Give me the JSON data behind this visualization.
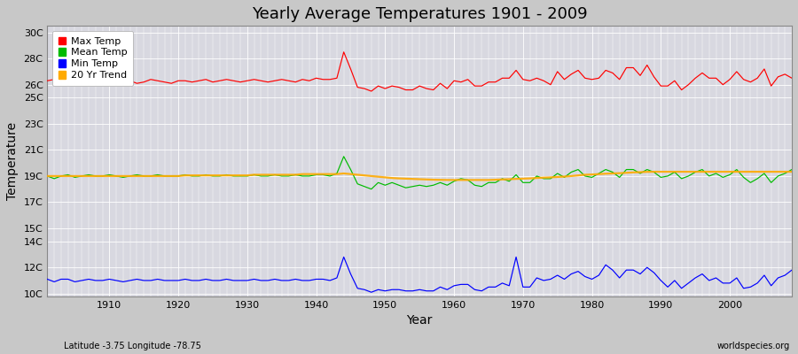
{
  "title": "Yearly Average Temperatures 1901 - 2009",
  "xlabel": "Year",
  "ylabel": "Temperature",
  "subtitle": "Latitude -3.75 Longitude -78.75",
  "watermark": "worldspecies.org",
  "years_start": 1901,
  "years_end": 2009,
  "ytick_positions": [
    10,
    12,
    14,
    15,
    17,
    19,
    21,
    23,
    25,
    26,
    28,
    30
  ],
  "ytick_labels": [
    "10C",
    "12C",
    "14C",
    "15C",
    "17C",
    "19C",
    "21C",
    "23C",
    "25C",
    "26C",
    "28C",
    "30C"
  ],
  "ylim": [
    9.8,
    30.5
  ],
  "xlim": [
    1901,
    2009
  ],
  "fig_bg_color": "#c8c8c8",
  "plot_bg_color": "#d8d8e0",
  "grid_color": "#ffffff",
  "max_temp_color": "#ff0000",
  "mean_temp_color": "#00bb00",
  "min_temp_color": "#0000ff",
  "trend_color": "#ffaa00",
  "legend_labels": [
    "Max Temp",
    "Mean Temp",
    "Min Temp",
    "20 Yr Trend"
  ],
  "xtick_vals": [
    1910,
    1920,
    1930,
    1940,
    1950,
    1960,
    1970,
    1980,
    1990,
    2000
  ],
  "max_temp": [
    26.3,
    26.4,
    26.3,
    26.2,
    26.4,
    26.3,
    26.4,
    26.3,
    26.2,
    26.4,
    26.3,
    26.2,
    26.3,
    26.1,
    26.2,
    26.4,
    26.3,
    26.2,
    26.1,
    26.3,
    26.3,
    26.2,
    26.3,
    26.4,
    26.2,
    26.3,
    26.4,
    26.3,
    26.2,
    26.3,
    26.4,
    26.3,
    26.2,
    26.3,
    26.4,
    26.3,
    26.2,
    26.4,
    26.3,
    26.5,
    26.4,
    26.4,
    26.5,
    28.5,
    27.2,
    25.8,
    25.7,
    25.5,
    25.9,
    25.7,
    25.9,
    25.8,
    25.6,
    25.6,
    25.9,
    25.7,
    25.6,
    26.1,
    25.7,
    26.3,
    26.2,
    26.4,
    25.9,
    25.9,
    26.2,
    26.2,
    26.5,
    26.5,
    27.1,
    26.4,
    26.3,
    26.5,
    26.3,
    26.0,
    27.0,
    26.4,
    26.8,
    27.1,
    26.5,
    26.4,
    26.5,
    27.1,
    26.9,
    26.4,
    27.3,
    27.3,
    26.7,
    27.5,
    26.6,
    25.9,
    25.9,
    26.3,
    25.6,
    26.0,
    26.5,
    26.9,
    26.5,
    26.5,
    26.0,
    26.4,
    27.0,
    26.4,
    26.2,
    26.5,
    27.2,
    25.9,
    26.6,
    26.8,
    26.5
  ],
  "mean_temp": [
    19.0,
    18.8,
    19.0,
    19.1,
    18.9,
    19.0,
    19.1,
    19.0,
    19.0,
    19.1,
    19.0,
    18.9,
    19.0,
    19.1,
    19.0,
    19.0,
    19.1,
    19.0,
    19.0,
    19.0,
    19.1,
    19.0,
    19.0,
    19.1,
    19.0,
    19.0,
    19.1,
    19.0,
    19.0,
    19.0,
    19.1,
    19.0,
    19.0,
    19.1,
    19.0,
    19.0,
    19.1,
    19.0,
    19.0,
    19.1,
    19.1,
    19.0,
    19.2,
    20.5,
    19.5,
    18.4,
    18.2,
    18.0,
    18.5,
    18.3,
    18.5,
    18.3,
    18.1,
    18.2,
    18.3,
    18.2,
    18.3,
    18.5,
    18.3,
    18.6,
    18.8,
    18.7,
    18.3,
    18.2,
    18.5,
    18.5,
    18.8,
    18.6,
    19.1,
    18.5,
    18.5,
    19.0,
    18.8,
    18.8,
    19.2,
    18.9,
    19.3,
    19.5,
    19.0,
    18.9,
    19.2,
    19.5,
    19.3,
    18.9,
    19.5,
    19.5,
    19.2,
    19.5,
    19.3,
    18.9,
    19.0,
    19.3,
    18.8,
    19.0,
    19.3,
    19.5,
    19.0,
    19.2,
    18.9,
    19.1,
    19.5,
    18.9,
    18.5,
    18.8,
    19.2,
    18.5,
    19.0,
    19.2,
    19.5
  ],
  "min_temp": [
    11.1,
    10.9,
    11.1,
    11.1,
    10.9,
    11.0,
    11.1,
    11.0,
    11.0,
    11.1,
    11.0,
    10.9,
    11.0,
    11.1,
    11.0,
    11.0,
    11.1,
    11.0,
    11.0,
    11.0,
    11.1,
    11.0,
    11.0,
    11.1,
    11.0,
    11.0,
    11.1,
    11.0,
    11.0,
    11.0,
    11.1,
    11.0,
    11.0,
    11.1,
    11.0,
    11.0,
    11.1,
    11.0,
    11.0,
    11.1,
    11.1,
    11.0,
    11.2,
    12.8,
    11.5,
    10.4,
    10.3,
    10.1,
    10.3,
    10.2,
    10.3,
    10.3,
    10.2,
    10.2,
    10.3,
    10.2,
    10.2,
    10.5,
    10.3,
    10.6,
    10.7,
    10.7,
    10.3,
    10.2,
    10.5,
    10.5,
    10.8,
    10.6,
    12.8,
    10.5,
    10.5,
    11.2,
    11.0,
    11.1,
    11.4,
    11.1,
    11.5,
    11.7,
    11.3,
    11.1,
    11.4,
    12.2,
    11.8,
    11.2,
    11.8,
    11.8,
    11.5,
    12.0,
    11.6,
    11.0,
    10.5,
    11.0,
    10.4,
    10.8,
    11.2,
    11.5,
    11.0,
    11.2,
    10.8,
    10.8,
    11.2,
    10.4,
    10.5,
    10.8,
    11.4,
    10.6,
    11.2,
    11.4,
    11.8
  ],
  "trend": [
    19.0,
    19.0,
    19.0,
    19.0,
    19.0,
    19.0,
    19.0,
    19.0,
    19.0,
    19.0,
    19.0,
    19.0,
    19.0,
    19.0,
    19.0,
    19.0,
    19.0,
    19.0,
    19.0,
    19.0,
    19.05,
    19.05,
    19.05,
    19.05,
    19.05,
    19.05,
    19.05,
    19.05,
    19.05,
    19.05,
    19.1,
    19.1,
    19.1,
    19.1,
    19.1,
    19.1,
    19.1,
    19.15,
    19.15,
    19.15,
    19.15,
    19.15,
    19.15,
    19.2,
    19.15,
    19.1,
    19.05,
    19.0,
    18.95,
    18.9,
    18.85,
    18.82,
    18.8,
    18.78,
    18.76,
    18.74,
    18.72,
    18.71,
    18.7,
    18.7,
    18.7,
    18.7,
    18.7,
    18.7,
    18.7,
    18.72,
    18.74,
    18.76,
    18.78,
    18.8,
    18.82,
    18.85,
    18.88,
    18.9,
    18.93,
    18.96,
    19.0,
    19.05,
    19.1,
    19.12,
    19.15,
    19.18,
    19.2,
    19.22,
    19.25,
    19.28,
    19.3,
    19.32,
    19.33,
    19.33,
    19.33,
    19.33,
    19.33,
    19.33,
    19.33,
    19.33,
    19.33,
    19.33,
    19.33,
    19.33,
    19.33,
    19.33,
    19.33,
    19.33,
    19.33,
    19.33,
    19.33,
    19.33,
    19.33
  ]
}
